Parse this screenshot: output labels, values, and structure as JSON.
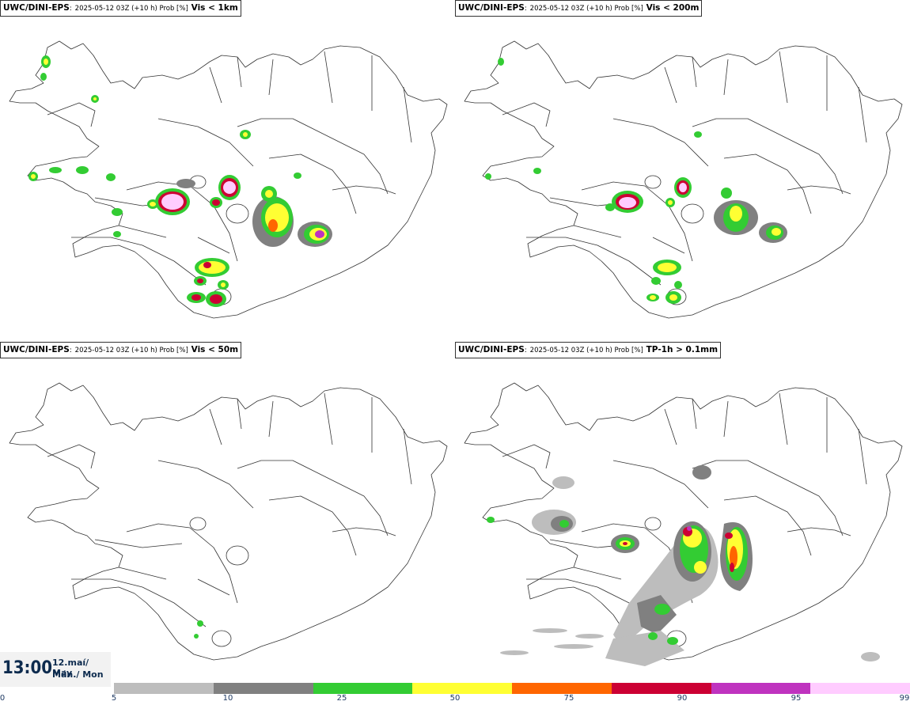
{
  "panels": [
    {
      "model": "UWC/DINI-EPS",
      "run": "2025-05-12 03Z (+10 h) Prob [%]",
      "variable": "Vis < 1km"
    },
    {
      "model": "UWC/DINI-EPS",
      "run": "2025-05-12 03Z (+10 h) Prob [%]",
      "variable": "Vis < 200m"
    },
    {
      "model": "UWC/DINI-EPS",
      "run": "2025-05-12 03Z (+10 h) Prob [%]",
      "variable": "Vis < 50m"
    },
    {
      "model": "UWC/DINI-EPS",
      "run": "2025-05-12 03Z (+10 h) Prob [%]",
      "variable": "TP-1h > 0.1mm"
    }
  ],
  "valid_time": {
    "time": "13:00",
    "date": "12.maí/ May",
    "day": "Mán./ Mon"
  },
  "legend": {
    "ticks": [
      "0",
      "5",
      "10",
      "25",
      "50",
      "75",
      "90",
      "95",
      "99"
    ],
    "colors": [
      "#bdbdbd",
      "#808080",
      "#33cc33",
      "#ffff33",
      "#ff6600",
      "#cc0033",
      "#bf33bf",
      "#ffccff"
    ]
  }
}
